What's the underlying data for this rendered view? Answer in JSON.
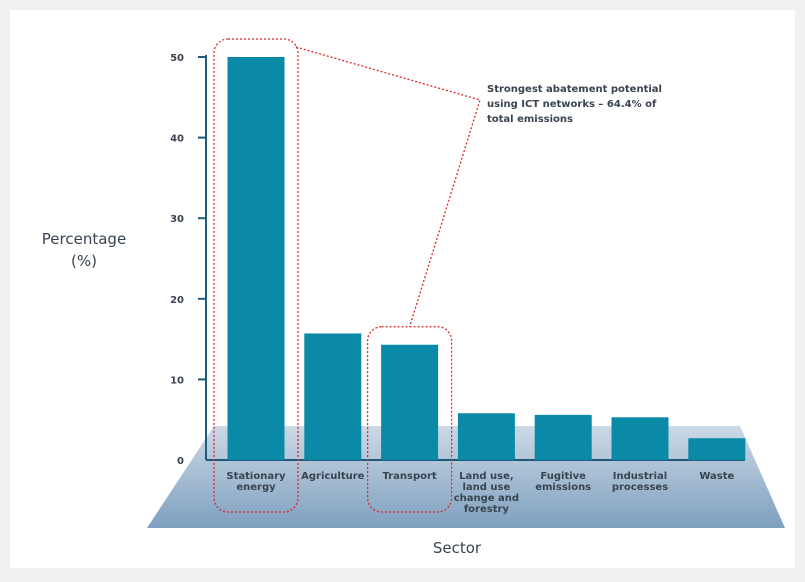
{
  "chart_data": {
    "type": "bar",
    "title": "",
    "xlabel": "Sector",
    "ylabel": [
      "Percentage",
      "(%)"
    ],
    "ylim": [
      0,
      50
    ],
    "yticks": [
      0,
      10,
      20,
      30,
      40,
      50
    ],
    "categories": [
      [
        "Stationary",
        "energy"
      ],
      [
        "Agriculture"
      ],
      [
        "Transport"
      ],
      [
        "Land use,",
        "land use",
        "change and",
        "forestry"
      ],
      [
        "Fugitive",
        "emissions"
      ],
      [
        "Industrial",
        "processes"
      ],
      [
        "Waste"
      ]
    ],
    "values": [
      50,
      15.7,
      14.3,
      5.8,
      5.6,
      5.3,
      2.7
    ],
    "highlighted": [
      0,
      2
    ],
    "annotation": [
      "Strongest abatement potential",
      "using ICT networks – 64.4% of",
      "total emissions"
    ],
    "grid": false,
    "legend": "none"
  },
  "colors": {
    "bar": "#0a8aa6",
    "axis": "#1f5a78",
    "platform_light": "#ccd9e6",
    "platform_dark": "#7ea0bf",
    "highlight": "#e0262b",
    "text": "#3a4450"
  }
}
